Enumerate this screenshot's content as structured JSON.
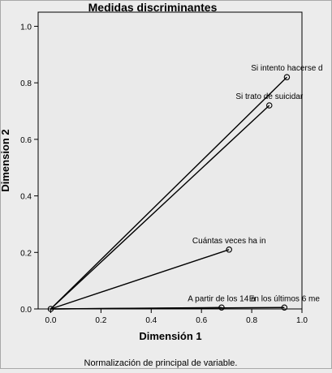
{
  "chart_data": {
    "type": "line",
    "title": "Medidas discriminantes",
    "xlabel": "Dimensión 1",
    "ylabel": "Dimension 2",
    "xlim": [
      -0.05,
      1.0
    ],
    "ylim": [
      0.0,
      1.05
    ],
    "xticks": [
      0.0,
      0.2,
      0.4,
      0.6,
      0.8,
      1.0
    ],
    "xtick_labels": [
      "0.0",
      "0.2",
      "0.4",
      "0.6",
      "0.8",
      "1.0"
    ],
    "yticks": [
      0.0,
      0.2,
      0.4,
      0.6,
      0.8,
      1.0
    ],
    "ytick_labels": [
      "0.0",
      "0.2",
      "0.4",
      "0.6",
      "0.8",
      "1.0"
    ],
    "grid": false,
    "origin": [
      0.0,
      0.0
    ],
    "series": [
      {
        "label": "Si intento hacerse d",
        "x": 0.94,
        "y": 0.82
      },
      {
        "label": "Si trato de suicidar",
        "x": 0.87,
        "y": 0.72
      },
      {
        "label": "Cuántas veces ha in",
        "x": 0.71,
        "y": 0.21
      },
      {
        "label": "A partir de los 14 a",
        "x": 0.68,
        "y": 0.005
      },
      {
        "label": "En los últimos 6 me",
        "x": 0.93,
        "y": 0.005
      }
    ],
    "footnote": "Normalización de principal de variable."
  }
}
